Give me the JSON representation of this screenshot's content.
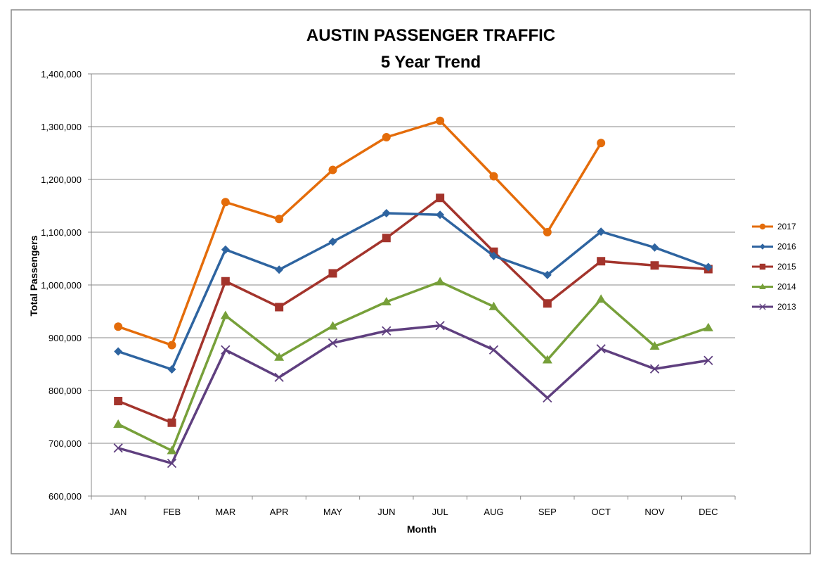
{
  "chart_data": {
    "type": "line",
    "title": "AUSTIN PASSENGER TRAFFIC",
    "subtitle": "5 Year Trend",
    "xlabel": "Month",
    "ylabel": "Total Passengers",
    "ylim": [
      600000,
      1400000
    ],
    "ytick_step": 100000,
    "yticks": [
      "600,000",
      "700,000",
      "800,000",
      "900,000",
      "1,000,000",
      "1,100,000",
      "1,200,000",
      "1,300,000",
      "1,400,000"
    ],
    "grid": true,
    "legend_position": "right",
    "categories": [
      "JAN",
      "FEB",
      "MAR",
      "APR",
      "MAY",
      "JUN",
      "JUL",
      "AUG",
      "SEP",
      "OCT",
      "NOV",
      "DEC"
    ],
    "series": [
      {
        "name": "2017",
        "color": "#E46C0A",
        "marker": "circle",
        "values": [
          921000,
          886000,
          1157000,
          1125000,
          1218000,
          1280000,
          1311000,
          1206000,
          1100000,
          1269000,
          null,
          null
        ]
      },
      {
        "name": "2016",
        "color": "#2E64A0",
        "marker": "diamond",
        "values": [
          874000,
          840000,
          1067000,
          1029000,
          1082000,
          1136000,
          1133000,
          1055000,
          1019000,
          1101000,
          1071000,
          1034000
        ]
      },
      {
        "name": "2015",
        "color": "#A3342C",
        "marker": "square",
        "values": [
          780000,
          739000,
          1007000,
          958000,
          1022000,
          1089000,
          1165000,
          1063000,
          965000,
          1045000,
          1037000,
          1030000
        ]
      },
      {
        "name": "2014",
        "color": "#77A03A",
        "marker": "triangle",
        "values": [
          736000,
          686000,
          942000,
          863000,
          922000,
          968000,
          1006000,
          959000,
          858000,
          973000,
          884000,
          919000
        ]
      },
      {
        "name": "2013",
        "color": "#5F3F7F",
        "marker": "x",
        "values": [
          691000,
          662000,
          877000,
          825000,
          890000,
          913000,
          923000,
          877000,
          786000,
          879000,
          841000,
          857000
        ]
      }
    ]
  }
}
